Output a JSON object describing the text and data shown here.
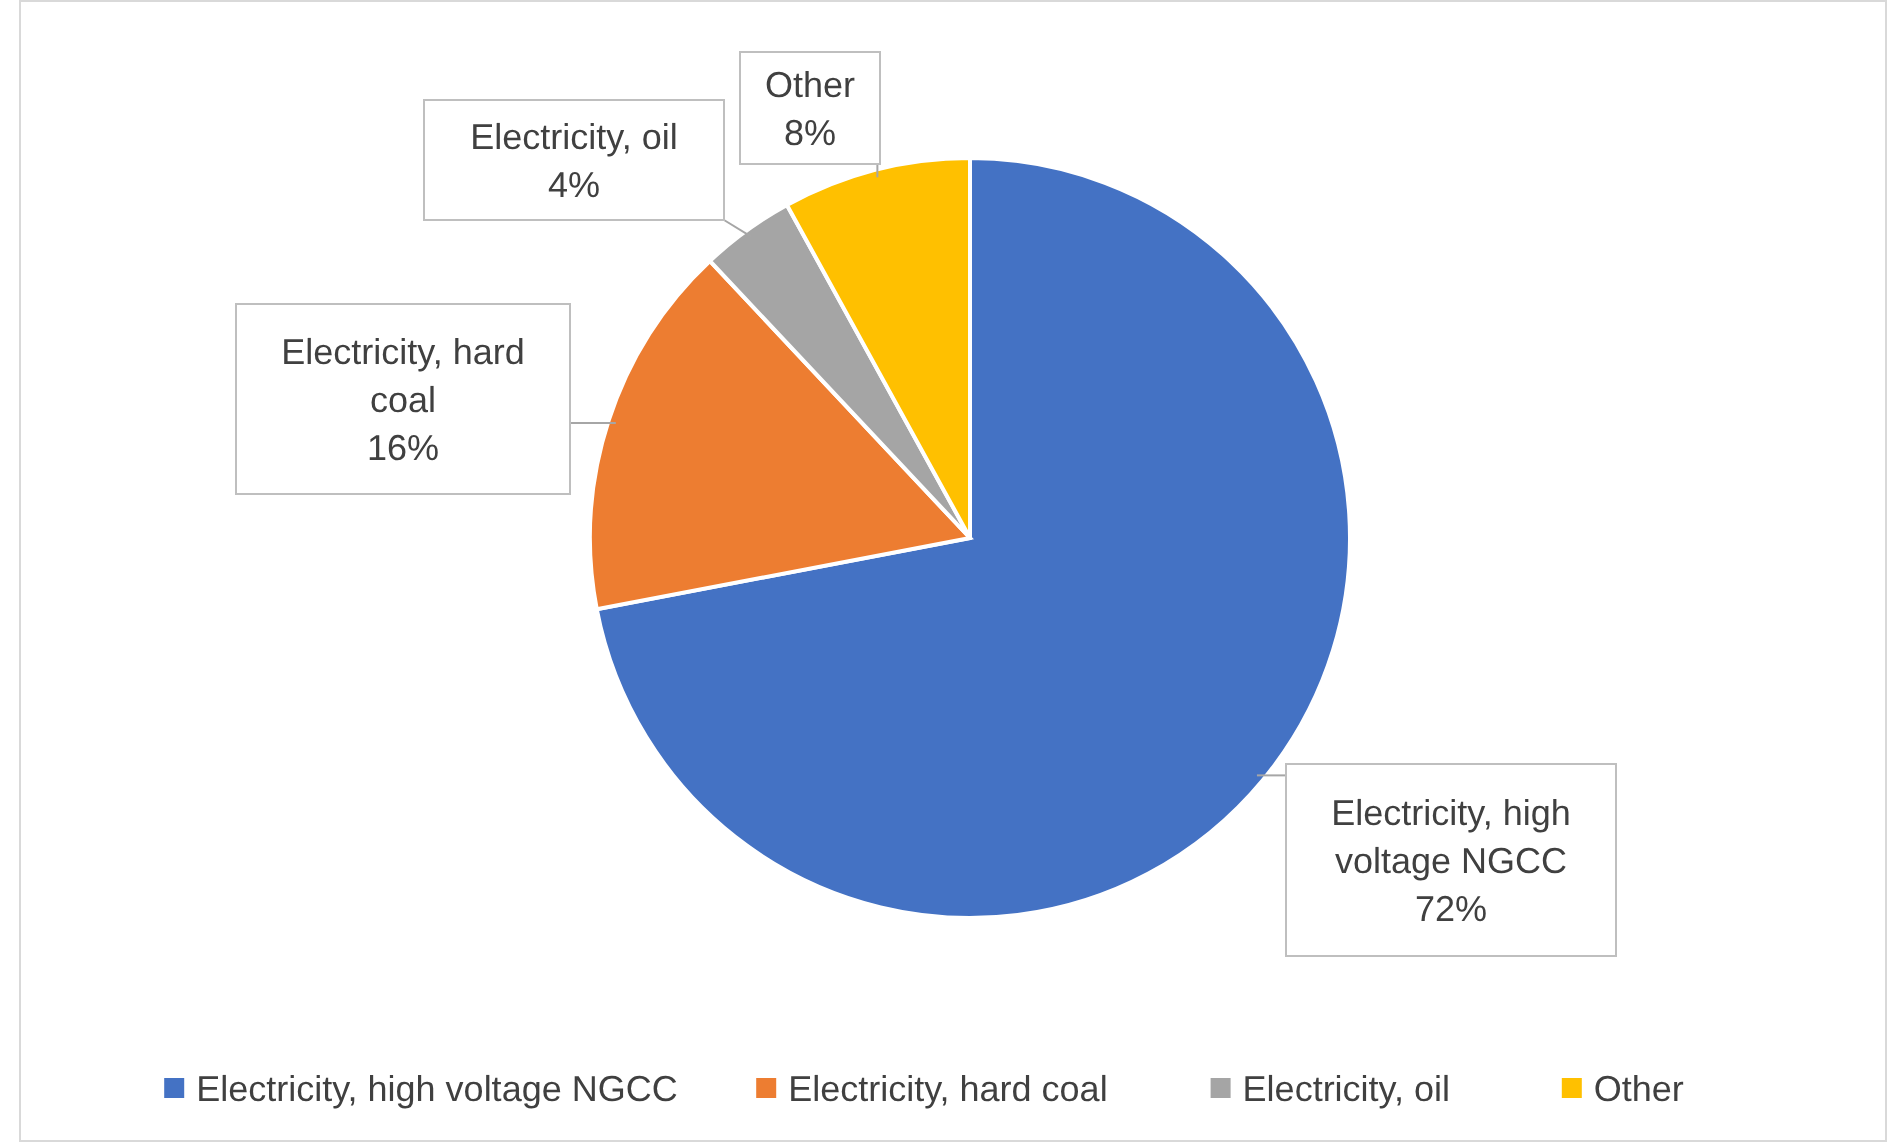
{
  "chart_data": {
    "type": "pie",
    "categories": [
      "Electricity, high voltage NGCC",
      "Electricity, hard coal",
      "Electricity, oil",
      "Other"
    ],
    "values": [
      72,
      16,
      4,
      8
    ],
    "colors": [
      "#4472c4",
      "#ed7d31",
      "#a5a5a5",
      "#ffc000"
    ],
    "value_labels": [
      "72%",
      "16%",
      "4%",
      "8%"
    ],
    "legend": "bottom"
  }
}
